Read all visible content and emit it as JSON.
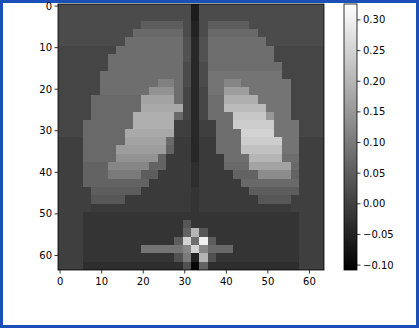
{
  "chart_data": {
    "type": "heatmap",
    "color": "gray",
    "xlim": [
      -0.5,
      63.5
    ],
    "ylim": [
      63.5,
      -0.5
    ],
    "xticks": [
      0,
      10,
      20,
      30,
      40,
      50,
      60
    ],
    "yticks": [
      0,
      10,
      20,
      30,
      40,
      50,
      60
    ],
    "colorbar_range": [
      -0.108,
      0.326
    ],
    "colorbar_ticks": [
      {
        "value": -0.1,
        "label": "−0.10"
      },
      {
        "value": -0.05,
        "label": "−0.05"
      },
      {
        "value": 0,
        "label": "0.00"
      },
      {
        "value": 0.05,
        "label": "0.05"
      },
      {
        "value": 0.1,
        "label": "0.10"
      },
      {
        "value": 0.15,
        "label": "0.15"
      },
      {
        "value": 0.2,
        "label": "0.20"
      },
      {
        "value": 0.25,
        "label": "0.25"
      },
      {
        "value": 0.3,
        "label": "0.30"
      }
    ],
    "cells": [
      [
        0.02,
        0.02,
        0.02,
        0.02,
        0.02,
        0.02,
        0.02,
        0.02,
        0.02,
        0.02,
        0.02,
        0.02,
        0.02,
        0.02,
        0.02,
        0.02,
        -0.06,
        0.02,
        0.02,
        0.02,
        0.02,
        0.02,
        0.02,
        0.02,
        0.02,
        0.02,
        0.02,
        0.02,
        0.02,
        0.02,
        0.02,
        0.02
      ],
      [
        0.02,
        0.02,
        0.02,
        0.02,
        0.02,
        0.02,
        0.02,
        0.02,
        0.02,
        0.02,
        0.02,
        0.02,
        0.02,
        0.02,
        0.02,
        0.02,
        -0.06,
        0.02,
        0.02,
        0.02,
        0.02,
        0.02,
        0.02,
        0.02,
        0.02,
        0.02,
        0.02,
        0.02,
        0.02,
        0.02,
        0.02,
        0.02
      ],
      [
        0.02,
        0.02,
        0.02,
        0.02,
        0.02,
        0.02,
        0.02,
        0.02,
        0.02,
        0.02,
        0.05,
        0.05,
        0.05,
        0.05,
        0.05,
        0.02,
        -0.05,
        0.02,
        0.05,
        0.05,
        0.05,
        0.05,
        0.05,
        0.02,
        0.02,
        0.02,
        0.02,
        0.02,
        0.02,
        0.02,
        0.02,
        0.02
      ],
      [
        0.02,
        0.02,
        0.02,
        0.02,
        0.02,
        0.02,
        0.02,
        0.02,
        0.02,
        0.07,
        0.07,
        0.07,
        0.07,
        0.07,
        0.07,
        0.02,
        -0.05,
        0.02,
        0.07,
        0.07,
        0.07,
        0.07,
        0.07,
        0.07,
        0.02,
        0.02,
        0.02,
        0.02,
        0.02,
        0.02,
        0.02,
        0.02
      ],
      [
        0.02,
        0.02,
        0.02,
        0.02,
        0.02,
        0.02,
        0.02,
        0.02,
        0.08,
        0.08,
        0.08,
        0.08,
        0.08,
        0.08,
        0.08,
        0.03,
        -0.04,
        0.03,
        0.08,
        0.08,
        0.08,
        0.08,
        0.08,
        0.08,
        0.08,
        0.02,
        0.02,
        0.02,
        0.02,
        0.02,
        0.02,
        0.02
      ],
      [
        0.01,
        0.01,
        0.01,
        0.01,
        0.01,
        0.01,
        0.01,
        0.08,
        0.08,
        0.08,
        0.08,
        0.08,
        0.08,
        0.08,
        0.08,
        0.03,
        -0.04,
        0.03,
        0.08,
        0.08,
        0.08,
        0.08,
        0.08,
        0.08,
        0.08,
        0.08,
        0.01,
        0.01,
        0.01,
        0.01,
        0.01,
        0.01
      ],
      [
        0.01,
        0.01,
        0.01,
        0.01,
        0.01,
        0.01,
        0.08,
        0.08,
        0.08,
        0.08,
        0.08,
        0.08,
        0.08,
        0.08,
        0.08,
        0.03,
        -0.04,
        0.03,
        0.08,
        0.08,
        0.08,
        0.08,
        0.08,
        0.08,
        0.08,
        0.08,
        0.01,
        0.01,
        0.01,
        0.01,
        0.01,
        0.01
      ],
      [
        0.01,
        0.01,
        0.01,
        0.01,
        0.01,
        0.01,
        0.08,
        0.08,
        0.08,
        0.08,
        0.08,
        0.08,
        0.08,
        0.08,
        0.08,
        0.02,
        -0.04,
        0.02,
        0.08,
        0.08,
        0.08,
        0.08,
        0.08,
        0.08,
        0.08,
        0.08,
        0.08,
        0.01,
        0.01,
        0.01,
        0.01,
        0.01
      ],
      [
        0.01,
        0.01,
        0.01,
        0.01,
        0.01,
        0.08,
        0.08,
        0.08,
        0.08,
        0.08,
        0.08,
        0.08,
        0.08,
        0.08,
        0.08,
        0.02,
        -0.04,
        0.02,
        0.09,
        0.09,
        0.09,
        0.09,
        0.09,
        0.09,
        0.09,
        0.09,
        0.09,
        0.01,
        0.01,
        0.01,
        0.01,
        0.01
      ],
      [
        0.01,
        0.01,
        0.01,
        0.01,
        0.01,
        0.08,
        0.08,
        0.08,
        0.08,
        0.08,
        0.08,
        0.08,
        0.11,
        0.11,
        0.08,
        0.02,
        -0.04,
        0.02,
        0.09,
        0.09,
        0.12,
        0.12,
        0.09,
        0.09,
        0.09,
        0.09,
        0.09,
        0.09,
        0.01,
        0.01,
        0.01,
        0.01
      ],
      [
        0.01,
        0.01,
        0.01,
        0.01,
        0.01,
        0.08,
        0.08,
        0.08,
        0.08,
        0.08,
        0.08,
        0.14,
        0.14,
        0.14,
        0.08,
        0.01,
        -0.04,
        0.01,
        0.09,
        0.09,
        0.16,
        0.16,
        0.16,
        0.09,
        0.09,
        0.09,
        0.09,
        0.09,
        0.01,
        0.01,
        0.01,
        0.01
      ],
      [
        0.01,
        0.01,
        0.01,
        0.01,
        0.07,
        0.07,
        0.07,
        0.07,
        0.07,
        0.07,
        0.17,
        0.17,
        0.17,
        0.17,
        0.08,
        0.01,
        -0.04,
        0.01,
        0.08,
        0.08,
        0.19,
        0.19,
        0.19,
        0.19,
        0.09,
        0.09,
        0.09,
        0.09,
        0.01,
        0.01,
        0.01,
        0.01
      ],
      [
        0.01,
        0.01,
        0.01,
        0.01,
        0.07,
        0.07,
        0.07,
        0.07,
        0.07,
        0.07,
        0.18,
        0.18,
        0.18,
        0.18,
        0.18,
        0.01,
        -0.04,
        0.01,
        0.08,
        0.08,
        0.21,
        0.21,
        0.21,
        0.21,
        0.21,
        0.09,
        0.09,
        0.09,
        0.01,
        0.01,
        0.01,
        0.01
      ],
      [
        0.01,
        0.01,
        0.01,
        0.01,
        0.07,
        0.07,
        0.07,
        0.07,
        0.07,
        0.19,
        0.19,
        0.19,
        0.19,
        0.19,
        0.07,
        0.01,
        -0.04,
        0.01,
        0.08,
        0.08,
        0.08,
        0.23,
        0.23,
        0.23,
        0.23,
        0.15,
        0.09,
        0.09,
        0.01,
        0.01,
        0.01,
        0.01
      ],
      [
        0.01,
        0.01,
        0.01,
        0.07,
        0.07,
        0.07,
        0.07,
        0.07,
        0.07,
        0.19,
        0.19,
        0.19,
        0.19,
        0.19,
        0,
        0,
        -0.04,
        0,
        0,
        0.08,
        0.08,
        0.24,
        0.24,
        0.24,
        0.24,
        0.24,
        0.09,
        0.09,
        0.09,
        0.01,
        0.01,
        0.01
      ],
      [
        0.01,
        0.01,
        0.01,
        0.07,
        0.07,
        0.07,
        0.07,
        0.07,
        0.18,
        0.18,
        0.18,
        0.18,
        0.18,
        0.18,
        0,
        0,
        -0.04,
        0,
        0,
        0.08,
        0.08,
        0.08,
        0.25,
        0.25,
        0.25,
        0.25,
        0.09,
        0.09,
        0.09,
        0.01,
        0.01,
        0.01
      ],
      [
        0,
        0,
        0,
        0.07,
        0.07,
        0.07,
        0.07,
        0.07,
        0.17,
        0.17,
        0.17,
        0.17,
        0.17,
        0.07,
        -0.01,
        -0.01,
        -0.04,
        -0.01,
        -0.01,
        0.08,
        0.08,
        0.08,
        0.24,
        0.24,
        0.24,
        0.24,
        0.24,
        0.09,
        0.09,
        0,
        0,
        0
      ],
      [
        0,
        0,
        0,
        0.07,
        0.07,
        0.07,
        0.07,
        0.16,
        0.16,
        0.16,
        0.16,
        0.16,
        0.16,
        0.06,
        -0.01,
        -0.01,
        -0.04,
        -0.01,
        -0.01,
        0.08,
        0.08,
        0.08,
        0.22,
        0.22,
        0.22,
        0.22,
        0.22,
        0.09,
        0.09,
        0,
        0,
        0
      ],
      [
        0,
        0,
        0,
        0.07,
        0.07,
        0.07,
        0.07,
        0.14,
        0.14,
        0.14,
        0.14,
        0.14,
        0.06,
        -0.01,
        -0.01,
        -0.01,
        -0.04,
        -0.01,
        -0.01,
        -0.01,
        0.08,
        0.08,
        0.08,
        0.2,
        0.2,
        0.2,
        0.2,
        0.08,
        0.08,
        0,
        0,
        0
      ],
      [
        0,
        0,
        0,
        0.06,
        0.06,
        0.06,
        0.12,
        0.12,
        0.12,
        0.12,
        0.12,
        0.06,
        0.06,
        -0.01,
        -0.01,
        -0.01,
        -0.03,
        -0.01,
        -0.01,
        -0.01,
        0.07,
        0.07,
        0.07,
        0.17,
        0.17,
        0.17,
        0.17,
        0.17,
        0.07,
        0,
        0,
        0
      ],
      [
        0,
        0,
        0,
        0.06,
        0.06,
        0.06,
        0.1,
        0.1,
        0.1,
        0.1,
        0.05,
        0.05,
        -0.01,
        -0.01,
        -0.01,
        -0.01,
        -0.03,
        -0.01,
        -0.01,
        -0.01,
        -0.01,
        0.06,
        0.06,
        0.06,
        0.13,
        0.13,
        0.13,
        0.13,
        0.06,
        0,
        0,
        0
      ],
      [
        0,
        0,
        0,
        0.06,
        0.06,
        0.06,
        0.06,
        0.06,
        0.06,
        0.06,
        0.06,
        -0.01,
        -0.01,
        -0.01,
        -0.01,
        -0.01,
        -0.03,
        -0.01,
        -0.01,
        -0.01,
        -0.01,
        -0.01,
        0.07,
        0.07,
        0.07,
        0.07,
        0.07,
        0.07,
        0.07,
        0,
        0,
        0
      ],
      [
        0,
        0,
        0,
        0,
        0.05,
        0.05,
        0.05,
        0.05,
        0.05,
        0.05,
        -0.01,
        -0.01,
        -0.01,
        -0.01,
        -0.01,
        -0.01,
        -0.02,
        -0.01,
        -0.01,
        -0.01,
        -0.01,
        -0.01,
        -0.01,
        0.05,
        0.05,
        0.05,
        0.05,
        0.05,
        0.05,
        0,
        0,
        0
      ],
      [
        0,
        0,
        0,
        0,
        0.04,
        0.04,
        0.04,
        0.04,
        -0.01,
        -0.01,
        -0.01,
        -0.01,
        -0.01,
        -0.01,
        -0.01,
        -0.01,
        -0.02,
        -0.01,
        -0.01,
        -0.01,
        -0.01,
        -0.01,
        -0.01,
        -0.01,
        0.04,
        0.04,
        0.04,
        0.04,
        0,
        0,
        0,
        0
      ],
      [
        0,
        0,
        0,
        0,
        -0.01,
        -0.01,
        -0.01,
        -0.01,
        -0.01,
        -0.01,
        -0.01,
        -0.01,
        -0.01,
        -0.01,
        -0.01,
        -0.01,
        -0.02,
        -0.01,
        -0.01,
        -0.01,
        -0.01,
        -0.01,
        -0.01,
        -0.01,
        -0.01,
        -0.01,
        -0.01,
        -0.01,
        0,
        0,
        0,
        0
      ],
      [
        0,
        0,
        0,
        -0.02,
        -0.02,
        -0.02,
        -0.02,
        -0.02,
        -0.02,
        -0.02,
        -0.02,
        -0.02,
        -0.02,
        -0.02,
        -0.02,
        -0.02,
        -0.02,
        -0.02,
        -0.02,
        -0.02,
        -0.02,
        -0.02,
        -0.02,
        -0.02,
        -0.02,
        -0.02,
        -0.02,
        -0.02,
        -0.02,
        0,
        0,
        0
      ],
      [
        0,
        0,
        0,
        -0.02,
        -0.02,
        -0.02,
        -0.02,
        -0.02,
        -0.02,
        -0.02,
        -0.02,
        -0.02,
        -0.02,
        -0.02,
        -0.02,
        0.04,
        -0.02,
        -0.02,
        -0.02,
        -0.02,
        -0.02,
        -0.02,
        -0.02,
        -0.02,
        -0.02,
        -0.02,
        -0.02,
        -0.02,
        -0.02,
        0,
        0,
        0
      ],
      [
        0,
        0,
        0,
        -0.02,
        -0.02,
        -0.02,
        -0.02,
        -0.02,
        -0.02,
        -0.02,
        -0.02,
        -0.02,
        -0.02,
        -0.02,
        -0.02,
        0.06,
        0.2,
        0.04,
        -0.02,
        -0.02,
        -0.02,
        -0.02,
        -0.02,
        -0.02,
        -0.02,
        -0.02,
        -0.02,
        -0.02,
        -0.02,
        0,
        0,
        0
      ],
      [
        0,
        0,
        0,
        -0.02,
        -0.02,
        -0.02,
        -0.02,
        -0.02,
        -0.02,
        -0.02,
        -0.02,
        -0.02,
        -0.02,
        -0.02,
        0.05,
        0.25,
        0.08,
        0.3,
        0.05,
        -0.02,
        -0.02,
        -0.02,
        -0.02,
        -0.02,
        -0.02,
        -0.02,
        -0.02,
        -0.02,
        -0.02,
        0,
        0,
        0
      ],
      [
        0,
        0,
        0,
        -0.02,
        -0.02,
        -0.02,
        -0.02,
        -0.02,
        -0.02,
        -0.02,
        0.09,
        0.09,
        0.09,
        0.09,
        0.09,
        0.12,
        0.25,
        0.12,
        0.07,
        0.07,
        0.07,
        -0.02,
        -0.02,
        -0.02,
        -0.02,
        -0.02,
        -0.02,
        -0.02,
        -0.02,
        0,
        0,
        0
      ],
      [
        0,
        0,
        0,
        -0.02,
        -0.02,
        -0.02,
        -0.02,
        -0.02,
        -0.02,
        -0.02,
        -0.02,
        -0.02,
        -0.02,
        -0.02,
        0.03,
        0.1,
        -0.05,
        0.2,
        0.03,
        -0.02,
        -0.02,
        -0.02,
        -0.02,
        -0.02,
        -0.02,
        -0.02,
        -0.02,
        -0.02,
        -0.02,
        0,
        0,
        0
      ],
      [
        0,
        0,
        0,
        -0.03,
        -0.03,
        -0.03,
        -0.03,
        -0.03,
        -0.03,
        -0.03,
        -0.03,
        -0.03,
        -0.03,
        -0.03,
        -0.03,
        0.03,
        -0.1,
        0.06,
        -0.03,
        -0.03,
        -0.03,
        -0.03,
        -0.03,
        -0.03,
        -0.03,
        -0.03,
        -0.03,
        -0.03,
        -0.03,
        0,
        0,
        0
      ]
    ]
  }
}
